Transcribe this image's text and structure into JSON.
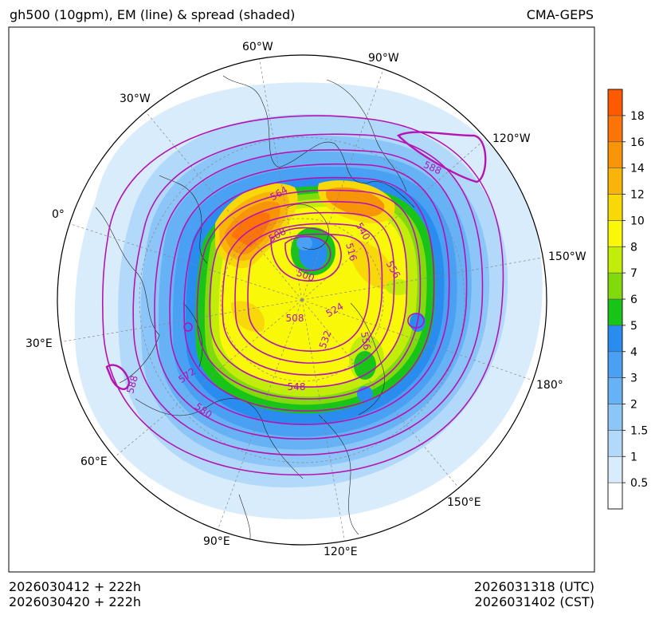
{
  "header": {
    "title": "gh500 (10gpm), EM (line) & spread (shaded)",
    "model": "CMA-GEPS"
  },
  "footer": {
    "init_utc": "2026030412 + 222h",
    "init_cst": "2026030420 + 222h",
    "valid_utc": "2026031318 (UTC)",
    "valid_cst": "2026031402 (CST)"
  },
  "longitude_labels": {
    "w60": "60°W",
    "w90": "90°W",
    "w30": "30°W",
    "w120": "120°W",
    "e0": "0°",
    "w150": "150°W",
    "e30": "30°E",
    "e180": "180°",
    "e60": "60°E",
    "e150": "150°E",
    "e90": "90°E",
    "e120": "120°E"
  },
  "contour_labels": {
    "c564": "564",
    "c508a": "508",
    "c540": "540",
    "c516": "516",
    "c500": "500",
    "c556a": "556",
    "c524": "524",
    "c508b": "508",
    "c532": "532",
    "c556b": "556",
    "c548": "548",
    "c572": "572",
    "c580": "580",
    "c588a": "588",
    "c588b": "588"
  },
  "colorbar": {
    "ticks": [
      "0.5",
      "1",
      "1.5",
      "2",
      "3",
      "4",
      "5",
      "6",
      "7",
      "8",
      "10",
      "12",
      "14",
      "16",
      "18"
    ],
    "colors": [
      "#ffffff",
      "#d9ecfc",
      "#b3d9fa",
      "#8cc6f8",
      "#66b2f4",
      "#4aa0f2",
      "#2b8cf0",
      "#19c419",
      "#82d90c",
      "#c2ec0a",
      "#f8f808",
      "#f8d808",
      "#f8b408",
      "#f89408",
      "#fc7408",
      "#ff5a00"
    ]
  },
  "style": {
    "contour_color": "#b414b4",
    "outline_color": "#000000"
  }
}
